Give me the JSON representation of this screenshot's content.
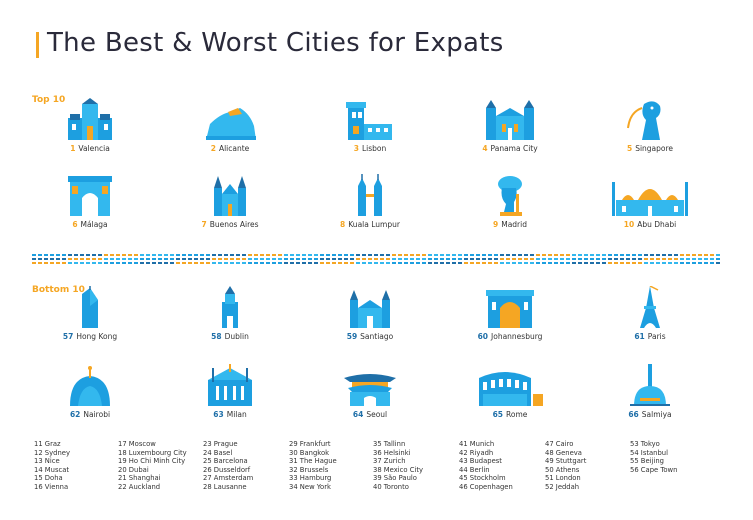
{
  "title": "The Best & Worst Cities for Expats",
  "top_label": "Top 10",
  "bottom_label": "Bottom 10",
  "colors": {
    "accent": "#f5a623",
    "blue": "#1d9fe0",
    "light_blue": "#33b8ee",
    "dark_blue": "#1f6fa8"
  },
  "top": [
    {
      "rank": "1",
      "name": "Valencia",
      "icon": "valencia-cathedral-icon"
    },
    {
      "rank": "2",
      "name": "Alicante",
      "icon": "alicante-rock-icon"
    },
    {
      "rank": "3",
      "name": "Lisbon",
      "icon": "lisbon-tower-icon"
    },
    {
      "rank": "4",
      "name": "Panama City",
      "icon": "panama-church-icon"
    },
    {
      "rank": "5",
      "name": "Singapore",
      "icon": "merlion-icon"
    },
    {
      "rank": "6",
      "name": "Málaga",
      "icon": "malaga-arch-icon"
    },
    {
      "rank": "7",
      "name": "Buenos Aires",
      "icon": "buenos-aires-church-icon"
    },
    {
      "rank": "8",
      "name": "Kuala Lumpur",
      "icon": "petronas-towers-icon"
    },
    {
      "rank": "9",
      "name": "Madrid",
      "icon": "madrid-bear-statue-icon"
    },
    {
      "rank": "10",
      "name": "Abu Dhabi",
      "icon": "grand-mosque-icon"
    }
  ],
  "bottom": [
    {
      "rank": "57",
      "name": "Hong Kong",
      "icon": "hong-kong-tower-icon"
    },
    {
      "rank": "58",
      "name": "Dublin",
      "icon": "dublin-spire-icon"
    },
    {
      "rank": "59",
      "name": "Santiago",
      "icon": "santiago-cathedral-icon"
    },
    {
      "rank": "60",
      "name": "Johannesburg",
      "icon": "johannesburg-building-icon"
    },
    {
      "rank": "61",
      "name": "Paris",
      "icon": "eiffel-tower-icon"
    },
    {
      "rank": "62",
      "name": "Nairobi",
      "icon": "nairobi-dome-icon"
    },
    {
      "rank": "63",
      "name": "Milan",
      "icon": "milan-cathedral-icon"
    },
    {
      "rank": "64",
      "name": "Seoul",
      "icon": "seoul-gate-icon"
    },
    {
      "rank": "65",
      "name": "Rome",
      "icon": "colosseum-icon"
    },
    {
      "rank": "66",
      "name": "Salmiya",
      "icon": "salmiya-tower-icon"
    }
  ],
  "list_columns": [
    [
      "11  Graz",
      "12  Sydney",
      "13  Nice",
      "14  Muscat",
      "15  Doha",
      "16  Vienna"
    ],
    [
      "17  Moscow",
      "18  Luxembourg City",
      "19  Ho Chi Minh City",
      "20  Dubai",
      "21  Shanghai",
      "22  Auckland"
    ],
    [
      "23  Prague",
      "24  Basel",
      "25  Barcelona",
      "26  Dusseldorf",
      "27  Amsterdam",
      "28  Lausanne"
    ],
    [
      "29  Frankfurt",
      "30  Bangkok",
      "31  The Hague",
      "32  Brussels",
      "33  Hamburg",
      "34  New York"
    ],
    [
      "35  Tallinn",
      "36  Helsinki",
      "37  Zurich",
      "38  Mexico City",
      "39  São Paulo",
      "40  Toronto"
    ],
    [
      "41  Munich",
      "42  Riyadh",
      "43  Budapest",
      "44  Berlin",
      "45  Stockholm",
      "46  Copenhagen"
    ],
    [
      "47  Cairo",
      "48  Geneva",
      "49  Stuttgart",
      "50  Athens",
      "51  London",
      "52  Jeddah"
    ],
    [
      "53  Tokyo",
      "54  Istanbul",
      "55  Beijing",
      "56  Cape Town"
    ]
  ]
}
